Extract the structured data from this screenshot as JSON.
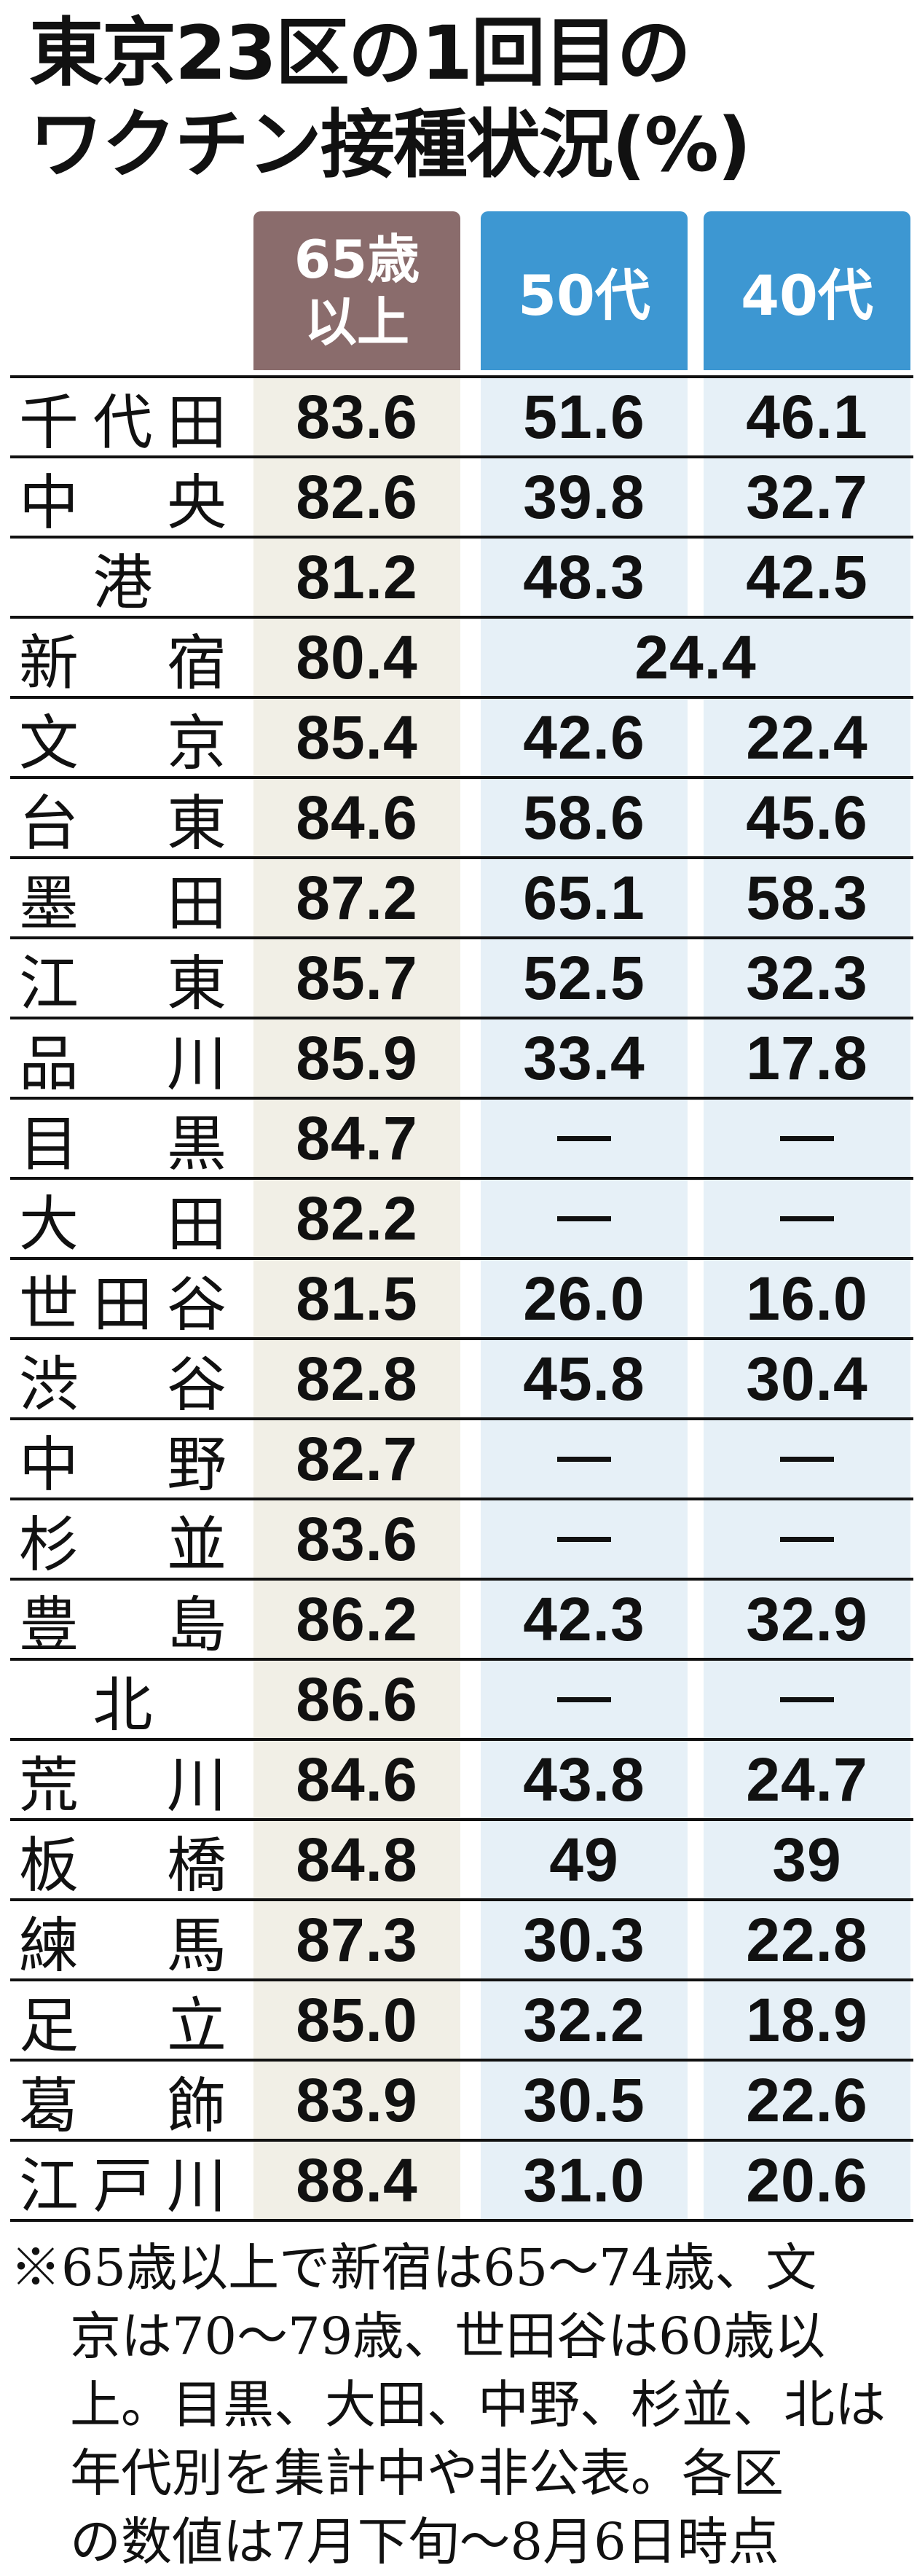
{
  "title": {
    "line1": "東京23区の1回目の",
    "line2": "ワクチン接種状況(%)"
  },
  "headers": {
    "col65_line1": "65歳",
    "col65_line2": "以上",
    "col50": "50代",
    "col40": "40代"
  },
  "rows": [
    {
      "ward": [
        "千",
        "代",
        "田"
      ],
      "v65": "83.6",
      "v50": "51.6",
      "v40": "46.1"
    },
    {
      "ward": [
        "中",
        "央"
      ],
      "v65": "82.6",
      "v50": "39.8",
      "v40": "32.7"
    },
    {
      "ward": [
        "港"
      ],
      "v65": "81.2",
      "v50": "48.3",
      "v40": "42.5"
    },
    {
      "ward": [
        "新",
        "宿"
      ],
      "v65": "80.4",
      "merged": "24.4"
    },
    {
      "ward": [
        "文",
        "京"
      ],
      "v65": "85.4",
      "v50": "42.6",
      "v40": "22.4"
    },
    {
      "ward": [
        "台",
        "東"
      ],
      "v65": "84.6",
      "v50": "58.6",
      "v40": "45.6"
    },
    {
      "ward": [
        "墨",
        "田"
      ],
      "v65": "87.2",
      "v50": "65.1",
      "v40": "58.3"
    },
    {
      "ward": [
        "江",
        "東"
      ],
      "v65": "85.7",
      "v50": "52.5",
      "v40": "32.3"
    },
    {
      "ward": [
        "品",
        "川"
      ],
      "v65": "85.9",
      "v50": "33.4",
      "v40": "17.8"
    },
    {
      "ward": [
        "目",
        "黒"
      ],
      "v65": "84.7",
      "v50": "ー",
      "v40": "ー"
    },
    {
      "ward": [
        "大",
        "田"
      ],
      "v65": "82.2",
      "v50": "ー",
      "v40": "ー"
    },
    {
      "ward": [
        "世",
        "田",
        "谷"
      ],
      "v65": "81.5",
      "v50": "26.0",
      "v40": "16.0"
    },
    {
      "ward": [
        "渋",
        "谷"
      ],
      "v65": "82.8",
      "v50": "45.8",
      "v40": "30.4"
    },
    {
      "ward": [
        "中",
        "野"
      ],
      "v65": "82.7",
      "v50": "ー",
      "v40": "ー"
    },
    {
      "ward": [
        "杉",
        "並"
      ],
      "v65": "83.6",
      "v50": "ー",
      "v40": "ー"
    },
    {
      "ward": [
        "豊",
        "島"
      ],
      "v65": "86.2",
      "v50": "42.3",
      "v40": "32.9"
    },
    {
      "ward": [
        "北"
      ],
      "v65": "86.6",
      "v50": "ー",
      "v40": "ー"
    },
    {
      "ward": [
        "荒",
        "川"
      ],
      "v65": "84.6",
      "v50": "43.8",
      "v40": "24.7"
    },
    {
      "ward": [
        "板",
        "橋"
      ],
      "v65": "84.8",
      "v50": "49",
      "v40": "39"
    },
    {
      "ward": [
        "練",
        "馬"
      ],
      "v65": "87.3",
      "v50": "30.3",
      "v40": "22.8"
    },
    {
      "ward": [
        "足",
        "立"
      ],
      "v65": "85.0",
      "v50": "32.2",
      "v40": "18.9"
    },
    {
      "ward": [
        "葛",
        "飾"
      ],
      "v65": "83.9",
      "v50": "30.5",
      "v40": "22.6"
    },
    {
      "ward": [
        "江",
        "戸",
        "川"
      ],
      "v65": "88.4",
      "v50": "31.0",
      "v40": "20.6"
    }
  ],
  "note": {
    "mark": "※",
    "lines": [
      "65歳以上で新宿は65〜74歳、文",
      "京は70〜79歳、世田谷は60歳以",
      "上。目黒、大田、中野、杉並、北は",
      "年代別を集計中や非公表。各区",
      "の数値は7月下旬〜8月6日時点"
    ]
  }
}
